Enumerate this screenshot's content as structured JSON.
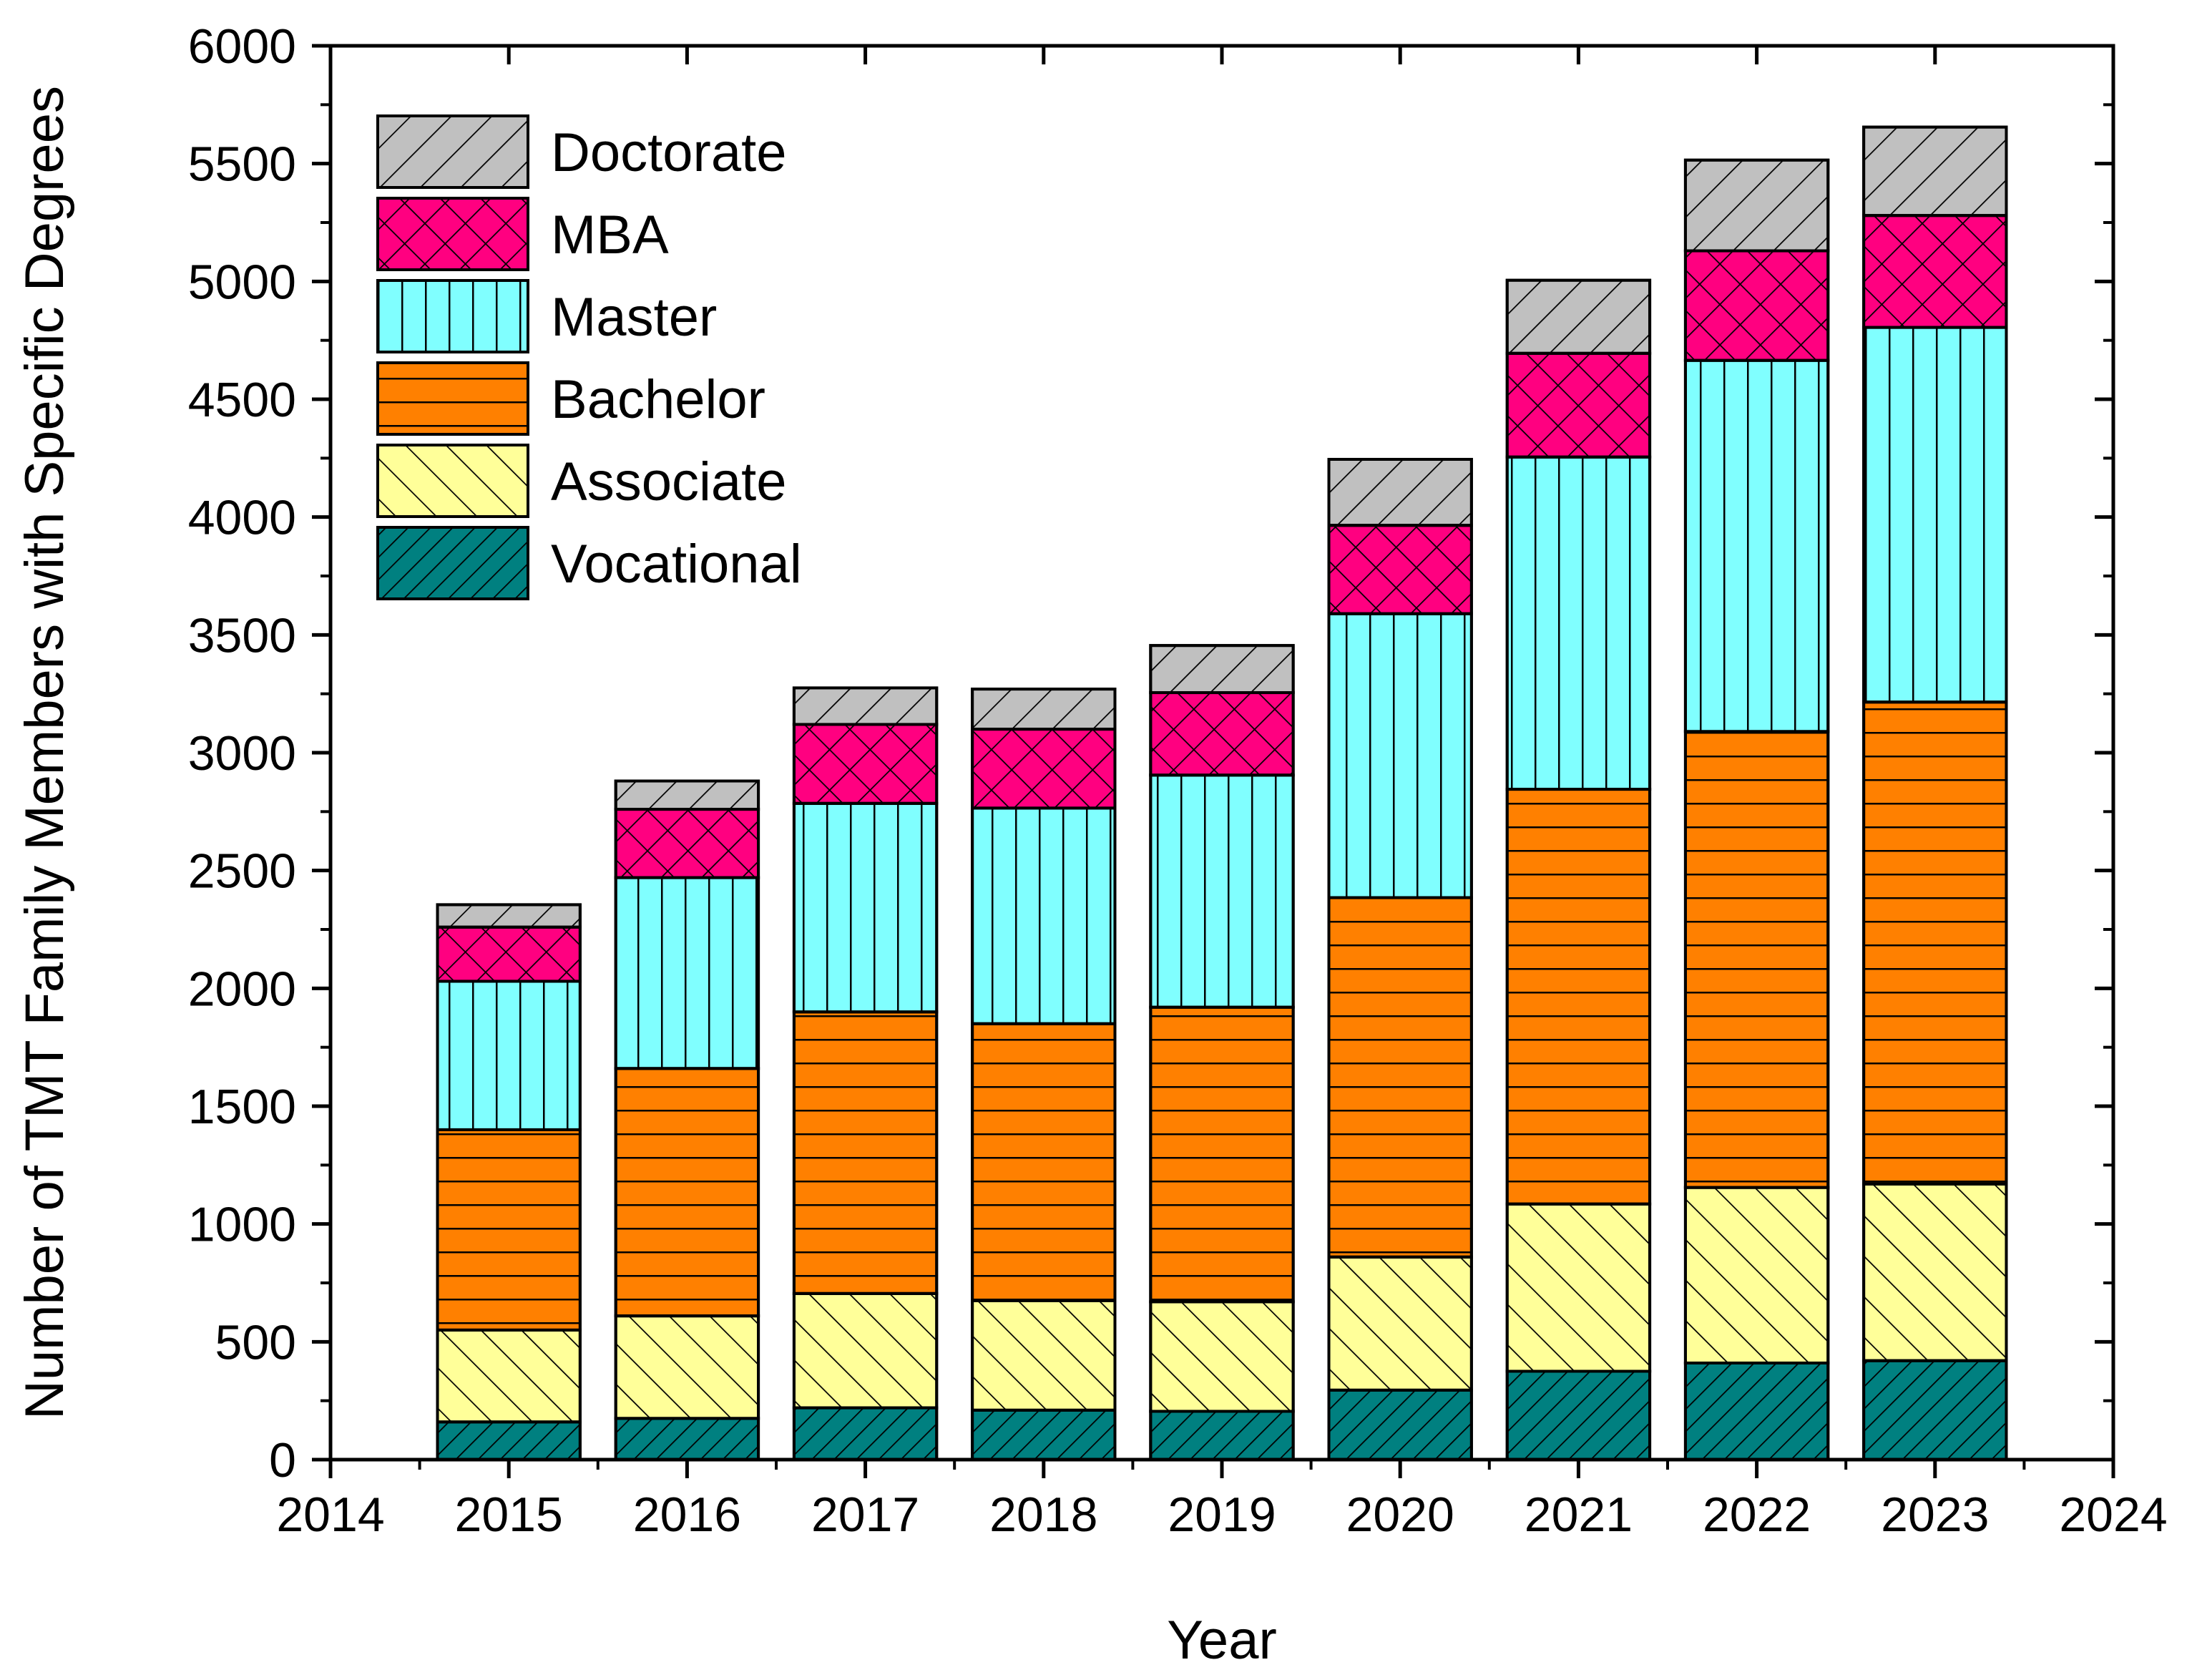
{
  "chart_data": {
    "type": "bar",
    "stacked": true,
    "title": "",
    "xlabel": "Year",
    "ylabel": "Number of TMT Family Members with Specific Degrees",
    "xlim": [
      2014,
      2024
    ],
    "ylim": [
      0,
      6000
    ],
    "x_ticks": [
      "2014",
      "2015",
      "2016",
      "2017",
      "2018",
      "2019",
      "2020",
      "2021",
      "2022",
      "2023",
      "2024"
    ],
    "y_ticks": [
      "0",
      "500",
      "1000",
      "1500",
      "2000",
      "2500",
      "3000",
      "3500",
      "4000",
      "4500",
      "5000",
      "5500",
      "6000"
    ],
    "categories": [
      "2015",
      "2016",
      "2017",
      "2018",
      "2019",
      "2020",
      "2021",
      "2022",
      "2023"
    ],
    "legend_position": "top-left",
    "series": [
      {
        "name": "Vocational",
        "color": "#008080",
        "pattern": "diagonal-fine",
        "values": [
          160,
          175,
          220,
          210,
          205,
          295,
          375,
          410,
          420
        ]
      },
      {
        "name": "Associate",
        "color": "#FFFF99",
        "pattern": "back-diagonal",
        "values": [
          390,
          435,
          485,
          465,
          465,
          565,
          710,
          745,
          750
        ]
      },
      {
        "name": "Bachelor",
        "color": "#FF8000",
        "pattern": "horizontal",
        "values": [
          850,
          1050,
          1195,
          1175,
          1250,
          1525,
          1760,
          1935,
          2045
        ]
      },
      {
        "name": "Master",
        "color": "#80FFFF",
        "pattern": "vertical",
        "values": [
          630,
          810,
          885,
          915,
          985,
          1205,
          1410,
          1575,
          1590
        ]
      },
      {
        "name": "MBA",
        "color": "#FF0080",
        "pattern": "crosshatch",
        "values": [
          230,
          290,
          335,
          335,
          350,
          375,
          440,
          465,
          475
        ]
      },
      {
        "name": "Doctorate",
        "color": "#C0C0C0",
        "pattern": "diagonal",
        "values": [
          95,
          120,
          155,
          170,
          200,
          280,
          310,
          385,
          375
        ]
      }
    ]
  }
}
